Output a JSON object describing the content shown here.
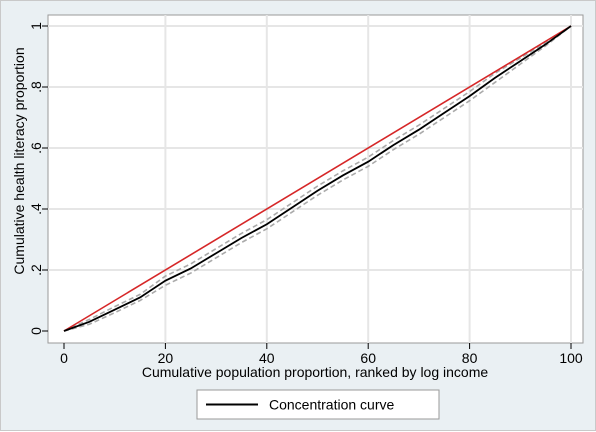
{
  "chart_data": {
    "type": "line",
    "title": "",
    "xlabel": "Cumulative population proportion, ranked by log income",
    "ylabel": "Cumulative health literacy proportion",
    "xlim": [
      0,
      100
    ],
    "ylim": [
      0,
      1
    ],
    "x_ticks": [
      0,
      20,
      40,
      60,
      80,
      100
    ],
    "y_ticks": [
      0,
      0.2,
      0.4,
      0.6,
      0.8,
      1
    ],
    "x_tick_labels": [
      "0",
      "20",
      "40",
      "60",
      "80",
      "100"
    ],
    "y_tick_labels": [
      "0",
      ".2",
      ".4",
      ".6",
      ".8",
      "1"
    ],
    "grid": true,
    "legend": {
      "placement": "bottom",
      "entries": [
        "Concentration curve"
      ]
    },
    "series": [
      {
        "name": "Concentration curve",
        "color": "#000000",
        "x": [
          0,
          5,
          10,
          15,
          20,
          25,
          30,
          35,
          40,
          45,
          50,
          55,
          60,
          65,
          70,
          75,
          80,
          85,
          90,
          95,
          100
        ],
        "y": [
          0,
          0.03,
          0.07,
          0.11,
          0.165,
          0.205,
          0.255,
          0.305,
          0.35,
          0.405,
          0.46,
          0.51,
          0.555,
          0.61,
          0.66,
          0.715,
          0.77,
          0.83,
          0.885,
          0.94,
          1.0
        ]
      },
      {
        "color": "#aaaaaa",
        "style": "dashed",
        "x": [
          0,
          5,
          10,
          15,
          20,
          25,
          30,
          35,
          40,
          45,
          50,
          55,
          60,
          65,
          70,
          75,
          80,
          85,
          90,
          95,
          100
        ],
        "y": [
          0,
          0.022,
          0.06,
          0.1,
          0.15,
          0.19,
          0.24,
          0.29,
          0.335,
          0.39,
          0.445,
          0.495,
          0.54,
          0.595,
          0.645,
          0.7,
          0.755,
          0.815,
          0.875,
          0.935,
          1.0
        ]
      },
      {
        "color": "#aaaaaa",
        "style": "dashed",
        "x": [
          0,
          5,
          10,
          15,
          20,
          25,
          30,
          35,
          40,
          45,
          50,
          55,
          60,
          65,
          70,
          75,
          80,
          85,
          90,
          95,
          100
        ],
        "y": [
          0,
          0.038,
          0.08,
          0.12,
          0.18,
          0.22,
          0.27,
          0.32,
          0.365,
          0.42,
          0.475,
          0.525,
          0.57,
          0.625,
          0.675,
          0.73,
          0.785,
          0.845,
          0.895,
          0.945,
          1.0
        ]
      },
      {
        "color": "#d62728",
        "x": [
          0,
          100
        ],
        "y": [
          0,
          1
        ]
      }
    ]
  }
}
